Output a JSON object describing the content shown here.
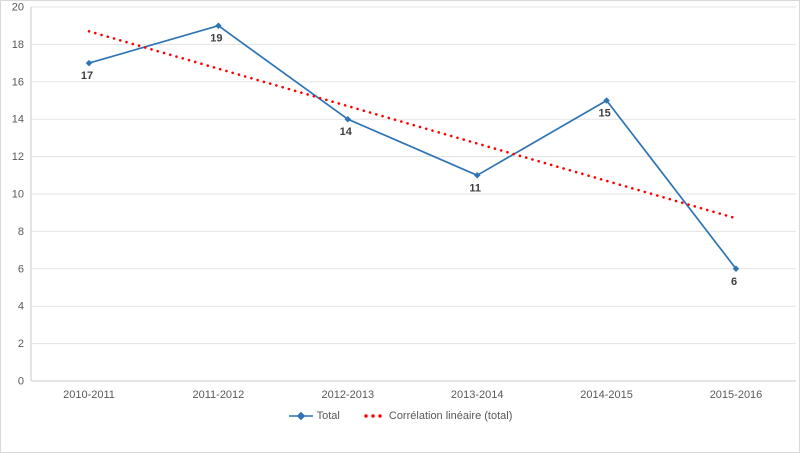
{
  "chart_data": {
    "type": "line",
    "title": "",
    "categories": [
      "2010-2011",
      "2011-2012",
      "2012-2013",
      "2013-2014",
      "2014-2015",
      "2015-2016"
    ],
    "series": [
      {
        "name": "Total",
        "values": [
          17,
          19,
          14,
          11,
          15,
          6
        ],
        "color": "#2E75B6",
        "marker": "diamond",
        "data_labels": [
          17,
          19,
          14,
          11,
          15,
          6
        ]
      }
    ],
    "trendline": {
      "name": "Corrélation linéaire (total)",
      "color": "#FF0000",
      "style": "dotted",
      "start_value": 18.7,
      "end_value": 8.7
    },
    "ylim": [
      0,
      20
    ],
    "yticks": [
      0,
      2,
      4,
      6,
      8,
      10,
      12,
      14,
      16,
      18,
      20
    ],
    "grid": "horizontal",
    "legend_position": "bottom",
    "xlabel": "",
    "ylabel": ""
  },
  "colors": {
    "series_blue": "#2E75B6",
    "trend_red": "#FF0000",
    "gridline": "#E3E3E3",
    "axis_line": "#C9C9C9",
    "axis_text": "#595959",
    "data_label": "#3F3F3F",
    "border": "#D9D9D9",
    "background": "#FFFFFF"
  }
}
